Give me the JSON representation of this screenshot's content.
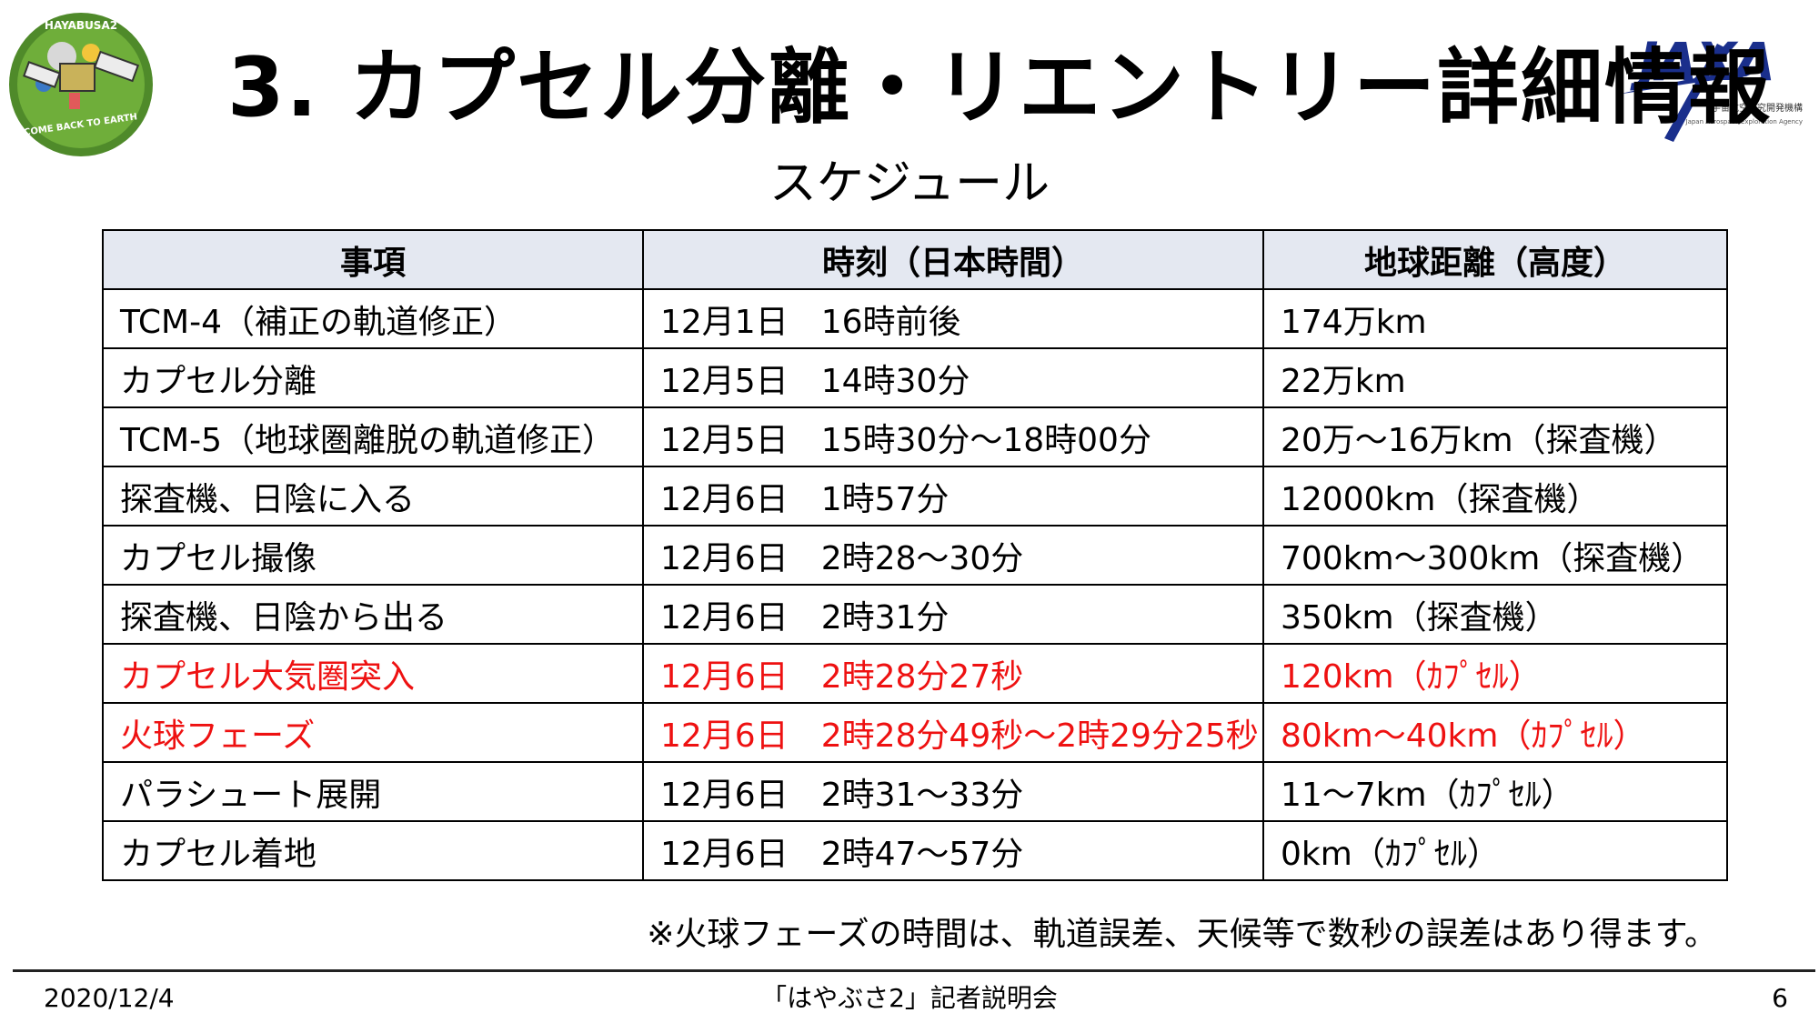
{
  "header": {
    "title": "3. カプセル分離・リエントリー詳細情報",
    "subtitle": "スケジュール",
    "mission_logo_text": "HAYABUSA2",
    "mission_logo_tagline": "COME BACK TO EARTH",
    "agency_logo_text": "JAXA",
    "agency_name_jp": "宇宙航空研究開発機構",
    "agency_name_en": "Japan Aerospace Exploration Agency"
  },
  "table": {
    "headers": [
      "事項",
      "時刻（日本時間）",
      "地球距離（高度）"
    ],
    "rows": [
      {
        "item": "TCM-4（補正の軌道修正）",
        "time": "12月1日　16時前後",
        "distance": "174万km"
      },
      {
        "item": "カプセル分離",
        "time": "12月5日　14時30分",
        "distance": "22万km"
      },
      {
        "item": "TCM-5（地球圏離脱の軌道修正）",
        "time": "12月5日　15時30分～18時00分",
        "distance": "20万～16万km（探査機）"
      },
      {
        "item": "探査機、日陰に入る",
        "time": "12月6日　1時57分",
        "distance": "12000km（探査機）"
      },
      {
        "item": "カプセル撮像",
        "time": "12月6日　2時28～30分",
        "distance": "700km～300km（探査機）"
      },
      {
        "item": "探査機、日陰から出る",
        "time": "12月6日　2時31分",
        "distance": "350km（探査機）"
      },
      {
        "item": "カプセル大気圏突入",
        "time": "12月6日　2時28分27秒",
        "distance": "120km（ｶﾌﾟｾﾙ）"
      },
      {
        "item": "火球フェーズ",
        "time": "12月6日　2時28分49秒～2時29分25秒",
        "distance": "80km～40km（ｶﾌﾟｾﾙ）"
      },
      {
        "item": "パラシュート展開",
        "time": "12月6日　2時31～33分",
        "distance": "11～7km（ｶﾌﾟｾﾙ）"
      },
      {
        "item": "カプセル着地",
        "time": "12月6日　2時47～57分",
        "distance": "0km（ｶﾌﾟｾﾙ）"
      }
    ]
  },
  "note": "※火球フェーズの時間は、軌道誤差、天候等で数秒の誤差はあり得ます。",
  "footer": {
    "date": "2020/12/4",
    "event": "「はやぶさ2」記者説明会",
    "page": "6"
  },
  "colors": {
    "highlight_text": "#ee1111",
    "header_fill": "#e4e8f1",
    "jaxa_blue": "#1a2f8c"
  }
}
